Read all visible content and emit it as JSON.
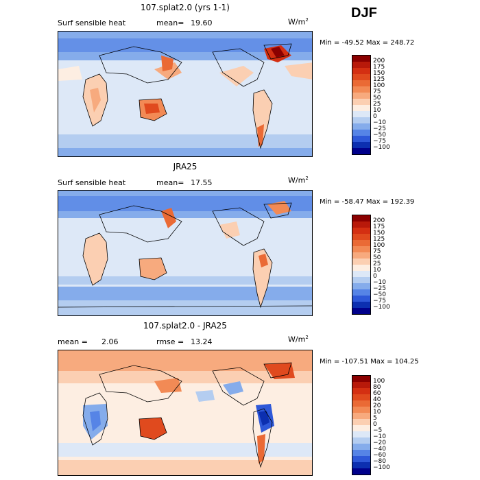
{
  "season": "DJF",
  "units": "W/m",
  "units_sup": "2",
  "panels": [
    {
      "title": "107.splat2.0 (yrs 1-1)",
      "field": "Surf sensible heat",
      "stat1_label": "mean=",
      "stat1_value": "19.60",
      "minmax": "Min = -49.52 Max = 248.72",
      "colorbar": {
        "levels": [
          "200",
          "175",
          "150",
          "125",
          "100",
          "75",
          "50",
          "25",
          "10",
          "0",
          "−10",
          "−25",
          "−50",
          "−75",
          "−100"
        ],
        "colors": [
          "#8b0000",
          "#b8190a",
          "#d42f12",
          "#e04a1e",
          "#ea6a35",
          "#f28a55",
          "#f7aa7e",
          "#fbcfb2",
          "#fdeee2",
          "#dde8f7",
          "#b4cdf0",
          "#85aceb",
          "#5684e6",
          "#2e58d8",
          "#0c2fb0",
          "#00008b"
        ]
      }
    },
    {
      "title": "JRA25",
      "field": "Surf sensible heat",
      "stat1_label": "mean=",
      "stat1_value": "17.55",
      "minmax": "Min = -58.47 Max = 192.39",
      "colorbar": {
        "levels": [
          "200",
          "175",
          "150",
          "125",
          "100",
          "75",
          "50",
          "25",
          "10",
          "0",
          "−10",
          "−25",
          "−50",
          "−75",
          "−100"
        ],
        "colors": [
          "#8b0000",
          "#b8190a",
          "#d42f12",
          "#e04a1e",
          "#ea6a35",
          "#f28a55",
          "#f7aa7e",
          "#fbcfb2",
          "#fdeee2",
          "#dde8f7",
          "#b4cdf0",
          "#85aceb",
          "#5684e6",
          "#2e58d8",
          "#0c2fb0",
          "#00008b"
        ]
      }
    },
    {
      "title": "107.splat2.0 - JRA25",
      "stat1_label": "mean =",
      "stat1_value": "2.06",
      "stat2_label": "rmse =",
      "stat2_value": "13.24",
      "minmax": "Min = -107.51 Max = 104.25",
      "colorbar": {
        "levels": [
          "100",
          "80",
          "60",
          "40",
          "20",
          "10",
          "5",
          "0",
          "−5",
          "−10",
          "−20",
          "−40",
          "−60",
          "−80",
          "−100"
        ],
        "colors": [
          "#8b0000",
          "#b8190a",
          "#d42f12",
          "#e04a1e",
          "#ea6a35",
          "#f28a55",
          "#f7aa7e",
          "#fbcfb2",
          "#fdeee2",
          "#dde8f7",
          "#b4cdf0",
          "#85aceb",
          "#5684e6",
          "#2e58d8",
          "#0c2fb0",
          "#00008b"
        ]
      }
    }
  ],
  "chart_data": [
    {
      "type": "heatmap",
      "title": "107.splat2.0 (yrs 1-1)",
      "subtitle": "Surf sensible heat",
      "units": "W/m2",
      "mean": 19.6,
      "min": -49.52,
      "max": 248.72,
      "contour_levels": [
        -100,
        -75,
        -50,
        -25,
        -10,
        0,
        10,
        25,
        50,
        75,
        100,
        125,
        150,
        175,
        200
      ],
      "projection": "global lat-lon map, Pacific-centered"
    },
    {
      "type": "heatmap",
      "title": "JRA25",
      "subtitle": "Surf sensible heat",
      "units": "W/m2",
      "mean": 17.55,
      "min": -58.47,
      "max": 192.39,
      "contour_levels": [
        -100,
        -75,
        -50,
        -25,
        -10,
        0,
        10,
        25,
        50,
        75,
        100,
        125,
        150,
        175,
        200
      ],
      "projection": "global lat-lon map, Pacific-centered"
    },
    {
      "type": "heatmap",
      "title": "107.splat2.0 - JRA25",
      "units": "W/m2",
      "mean": 2.06,
      "rmse": 13.24,
      "min": -107.51,
      "max": 104.25,
      "contour_levels": [
        -100,
        -80,
        -60,
        -40,
        -20,
        -10,
        -5,
        0,
        5,
        10,
        20,
        40,
        60,
        80,
        100
      ],
      "projection": "global lat-lon map, Pacific-centered"
    }
  ]
}
